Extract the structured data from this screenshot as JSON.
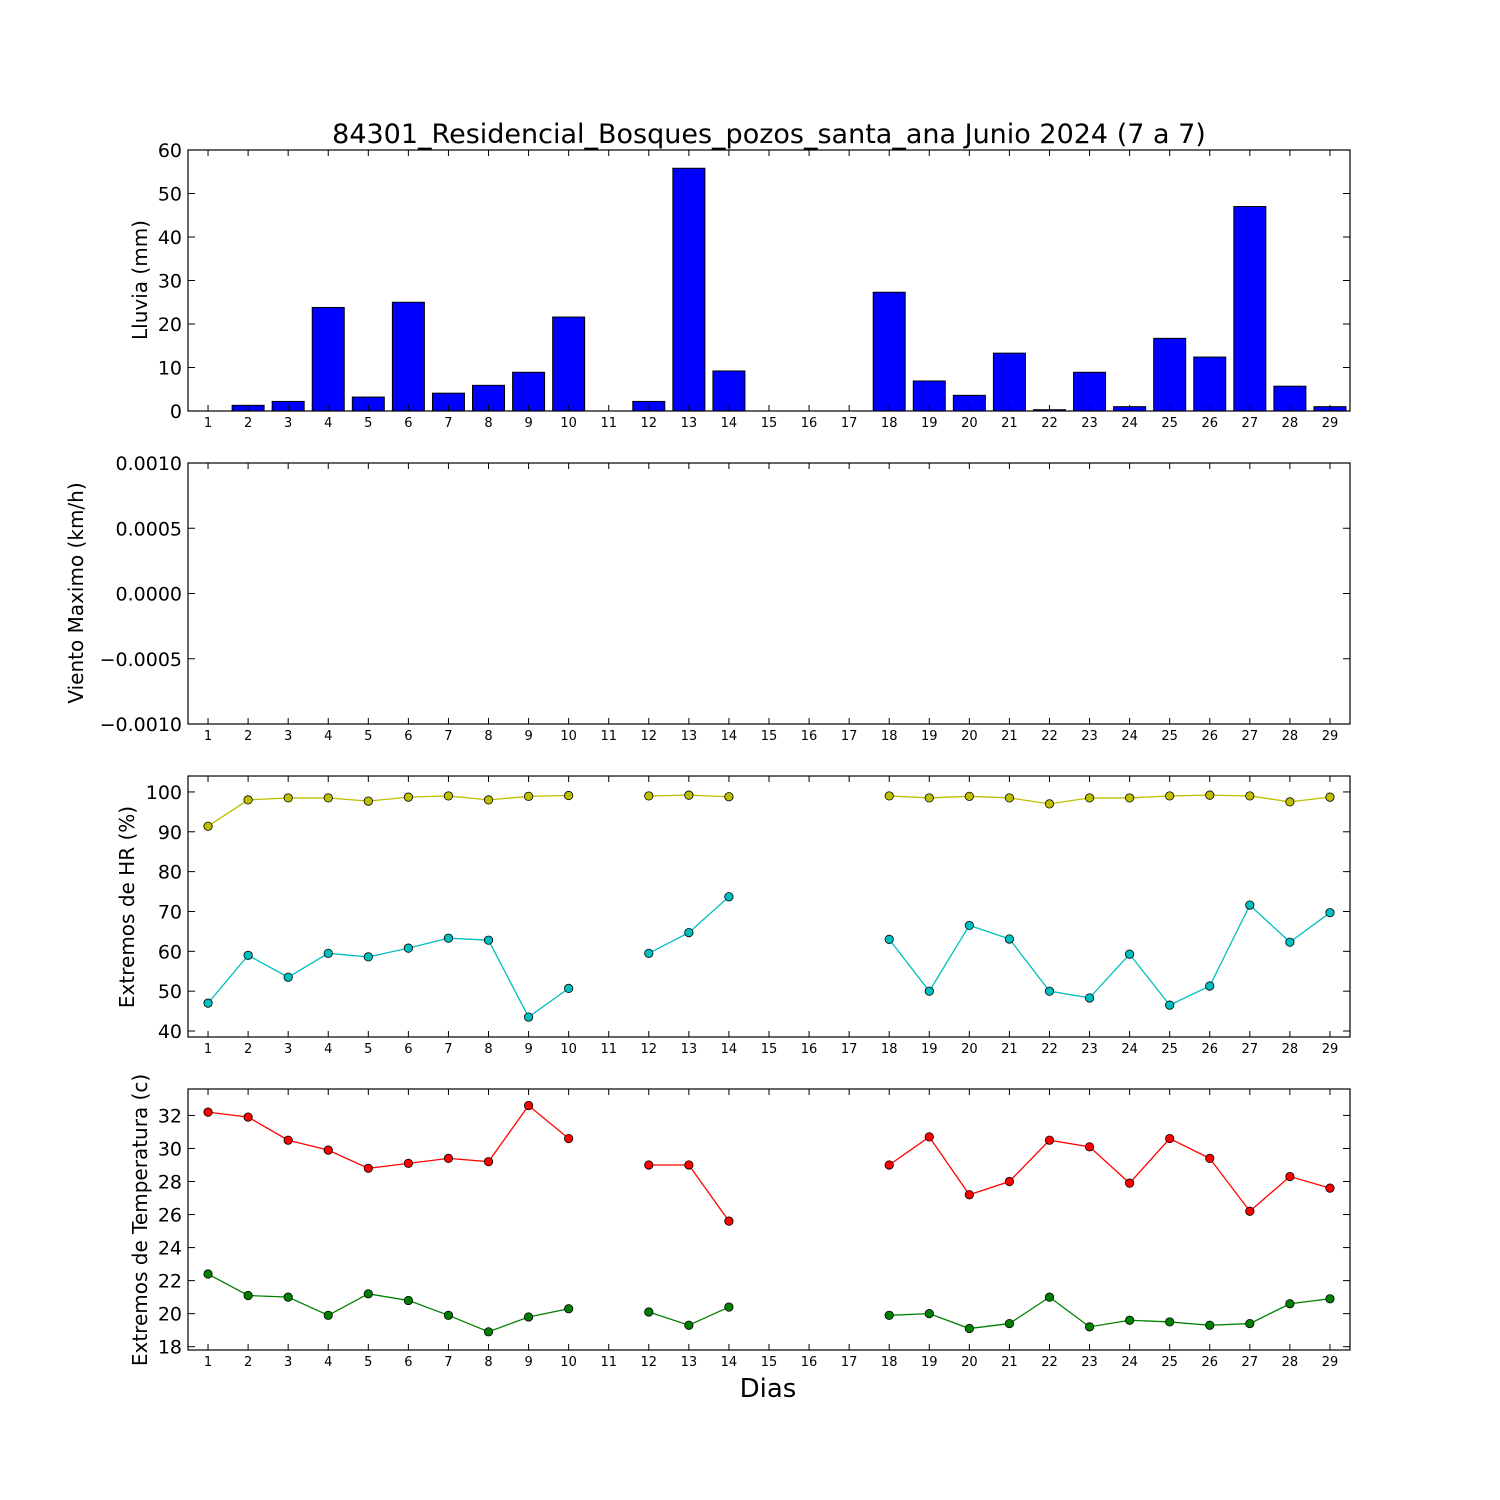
{
  "figure": {
    "title": "84301_Residencial_Bosques_pozos_santa_ana Junio 2024  (7 a 7)",
    "xlabel": "Dias"
  },
  "chart_data": [
    {
      "type": "bar",
      "ylabel": "Lluvia (mm)",
      "ylim": [
        0,
        60
      ],
      "yticks": [
        "0",
        "10",
        "20",
        "30",
        "40",
        "50",
        "60"
      ],
      "x": [
        1,
        2,
        3,
        4,
        5,
        6,
        7,
        8,
        9,
        10,
        11,
        12,
        13,
        14,
        15,
        16,
        17,
        18,
        19,
        20,
        21,
        22,
        23,
        24,
        25,
        26,
        27,
        28,
        29
      ],
      "series": [
        {
          "color": "#0000ff",
          "values": [
            0,
            1.3,
            2.2,
            23.8,
            3.2,
            25.0,
            4.1,
            5.9,
            8.9,
            21.6,
            0,
            2.2,
            55.8,
            9.2,
            0,
            0,
            0,
            27.3,
            6.9,
            3.6,
            13.3,
            0.3,
            8.9,
            1.0,
            16.7,
            12.4,
            47.0,
            5.7,
            1.0
          ]
        }
      ]
    },
    {
      "type": "line",
      "ylabel": "Viento Maximo (km/h)",
      "ylim": [
        -0.001,
        0.001
      ],
      "yticks": [
        "−0.0010",
        "−0.0005",
        "0.0000",
        "0.0005",
        "0.0010"
      ],
      "x": [
        1,
        2,
        3,
        4,
        5,
        6,
        7,
        8,
        9,
        10,
        11,
        12,
        13,
        14,
        15,
        16,
        17,
        18,
        19,
        20,
        21,
        22,
        23,
        24,
        25,
        26,
        27,
        28,
        29
      ],
      "series": []
    },
    {
      "type": "line",
      "ylabel": "Extremos de HR (%)",
      "ylim": [
        38.5,
        104
      ],
      "yticks": [
        "40",
        "50",
        "60",
        "70",
        "80",
        "90",
        "100"
      ],
      "x": [
        1,
        2,
        3,
        4,
        5,
        6,
        7,
        8,
        9,
        10,
        11,
        12,
        13,
        14,
        15,
        16,
        17,
        18,
        19,
        20,
        21,
        22,
        23,
        24,
        25,
        26,
        27,
        28,
        29
      ],
      "series": [
        {
          "color": "#bfbf00",
          "values": [
            91.4,
            98.0,
            98.5,
            98.5,
            97.7,
            98.7,
            99.0,
            98.0,
            98.9,
            99.1,
            null,
            99.0,
            99.2,
            98.8,
            null,
            null,
            null,
            99.0,
            98.5,
            98.9,
            98.5,
            97.0,
            98.5,
            98.5,
            99.0,
            99.2,
            99.0,
            97.5,
            98.7
          ]
        },
        {
          "color": "#00bfbf",
          "values": [
            47.0,
            59.0,
            53.5,
            59.5,
            58.6,
            60.8,
            63.3,
            62.8,
            43.5,
            50.7,
            null,
            59.5,
            64.7,
            73.7,
            null,
            null,
            null,
            63.0,
            50.0,
            66.5,
            63.1,
            50.0,
            48.3,
            59.3,
            46.5,
            51.3,
            71.6,
            62.3,
            69.7
          ]
        }
      ]
    },
    {
      "type": "line",
      "ylabel": "Extremos de Temperatura (c)",
      "ylim": [
        17.8,
        33.6
      ],
      "yticks": [
        "18",
        "20",
        "22",
        "24",
        "26",
        "28",
        "30",
        "32"
      ],
      "x": [
        1,
        2,
        3,
        4,
        5,
        6,
        7,
        8,
        9,
        10,
        11,
        12,
        13,
        14,
        15,
        16,
        17,
        18,
        19,
        20,
        21,
        22,
        23,
        24,
        25,
        26,
        27,
        28,
        29
      ],
      "series": [
        {
          "color": "#ff0000",
          "values": [
            32.2,
            31.9,
            30.5,
            29.9,
            28.8,
            29.1,
            29.4,
            29.2,
            32.6,
            30.6,
            null,
            29.0,
            29.0,
            25.6,
            null,
            null,
            null,
            29.0,
            30.7,
            27.2,
            28.0,
            30.5,
            30.1,
            27.9,
            30.6,
            29.4,
            26.2,
            28.3,
            27.6
          ]
        },
        {
          "color": "#008000",
          "values": [
            22.4,
            21.1,
            21.0,
            19.9,
            21.2,
            20.8,
            19.9,
            18.9,
            19.8,
            20.3,
            null,
            20.1,
            19.3,
            20.4,
            null,
            null,
            null,
            19.9,
            20.0,
            19.1,
            19.4,
            21.0,
            19.2,
            19.6,
            19.5,
            19.3,
            19.4,
            20.6,
            20.9
          ]
        }
      ]
    }
  ]
}
